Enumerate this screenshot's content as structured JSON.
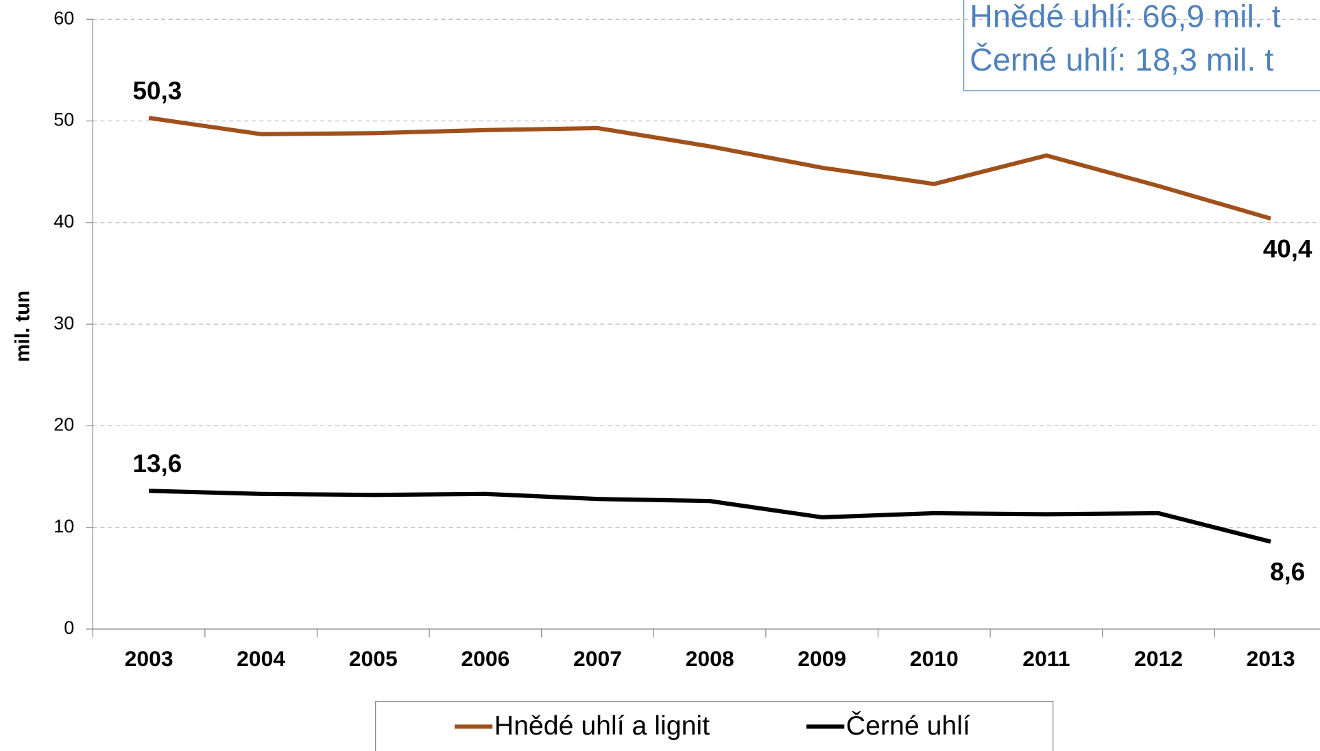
{
  "chart_data": {
    "type": "line",
    "y_label": "mil. tun",
    "categories": [
      "2003",
      "2004",
      "2005",
      "2006",
      "2007",
      "2008",
      "2009",
      "2010",
      "2011",
      "2012",
      "2013"
    ],
    "series": [
      {
        "name": "Hnědé uhlí a lignit",
        "color": "#a0501a",
        "values": [
          50.3,
          48.7,
          48.8,
          49.1,
          49.3,
          47.5,
          45.4,
          43.8,
          46.6,
          43.6,
          40.4
        ],
        "value_labels": [
          "50,3",
          null,
          null,
          null,
          null,
          null,
          null,
          null,
          null,
          null,
          "40,4"
        ]
      },
      {
        "name": "Černé uhlí",
        "color": "#000000",
        "values": [
          13.6,
          13.3,
          13.2,
          13.3,
          12.8,
          12.6,
          11.0,
          11.4,
          11.3,
          11.4,
          8.6
        ],
        "value_labels": [
          "13,6",
          null,
          null,
          null,
          null,
          null,
          null,
          null,
          null,
          null,
          "8,6"
        ]
      }
    ],
    "ylim": [
      0,
      60
    ],
    "yticks": [
      0,
      10,
      20,
      30,
      40,
      50,
      60
    ],
    "grid": true,
    "annotations": [
      "Hnědé uhlí: 66,9 mil. t",
      "Černé uhlí: 18,3 mil. t"
    ]
  }
}
